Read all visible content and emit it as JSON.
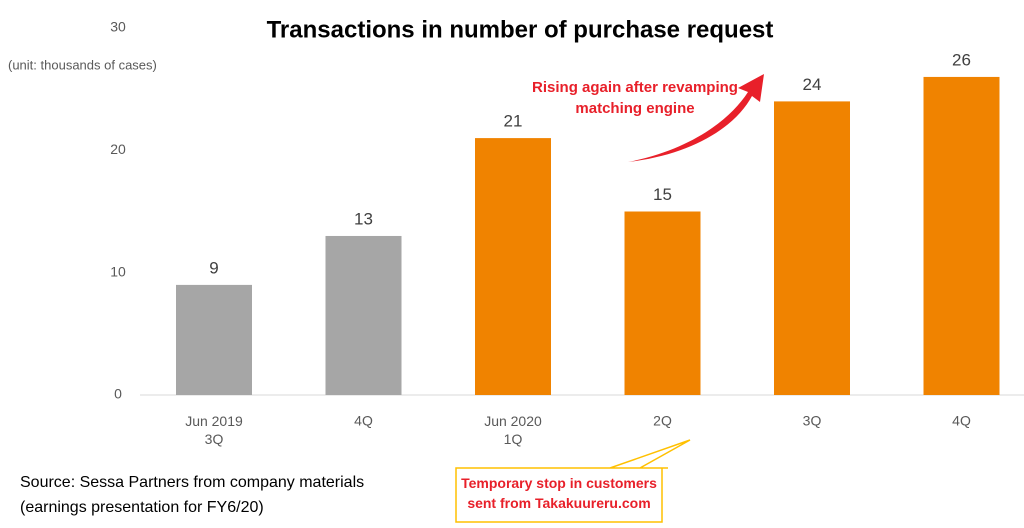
{
  "chart_data": {
    "type": "bar",
    "title": "Transactions in number of purchase request",
    "y_label": "(unit: thousands of cases)",
    "categories": [
      "Jun 2019\n3Q",
      "4Q",
      "Jun 2020\n1Q",
      "2Q",
      "3Q",
      "4Q"
    ],
    "values": [
      9,
      13,
      21,
      15,
      24,
      26
    ],
    "colors": [
      "#a6a6a6",
      "#a6a6a6",
      "#f08300",
      "#f08300",
      "#f08300",
      "#f08300"
    ],
    "ylim": [
      0,
      30
    ],
    "yticks": [
      0,
      10,
      20,
      30
    ],
    "grid": false,
    "annotations": [
      "Rising again after revamping\nmatching engine",
      "Temporary stop in customers\nsent from Takakuureru.com"
    ],
    "source": "Source: Sessa Partners from company materials\n(earnings presentation for FY6/20)"
  }
}
